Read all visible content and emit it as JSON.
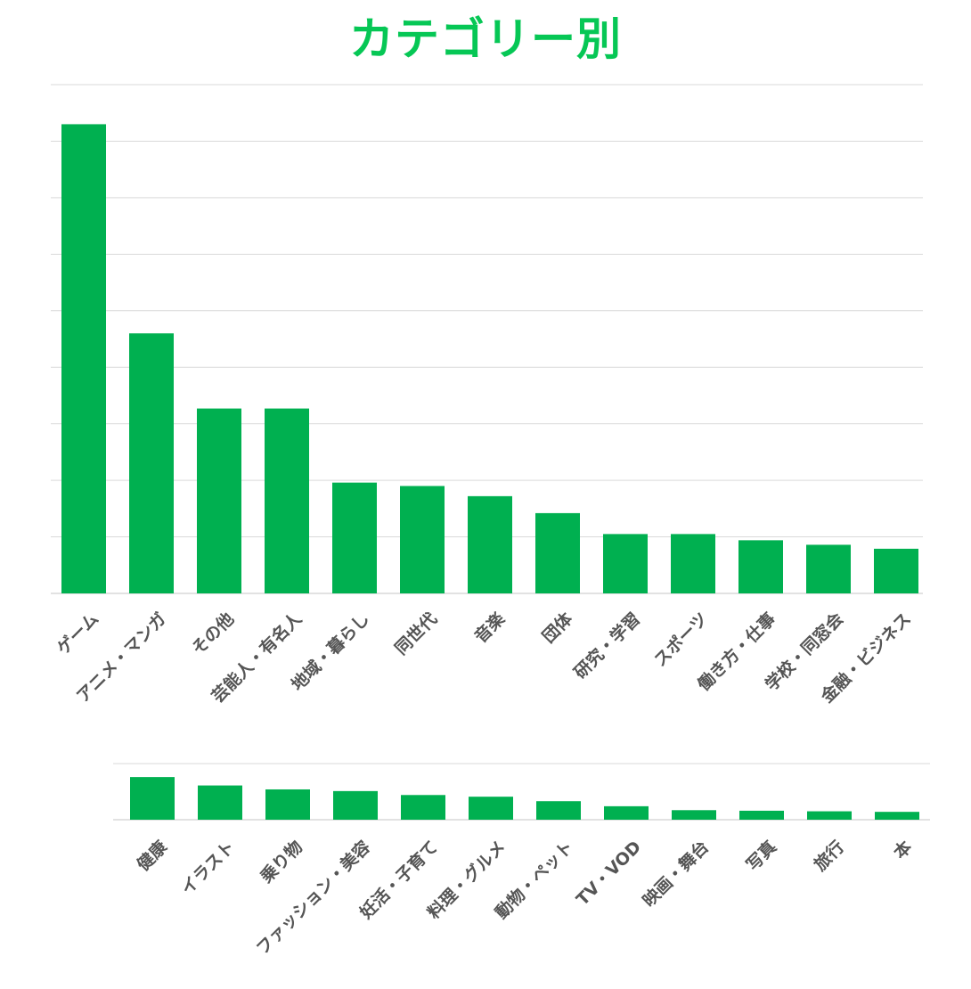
{
  "title": "カテゴリー別",
  "colors": {
    "title": "#06C755",
    "bar": "#00B050",
    "grid": "#d9d9d9",
    "label": "#555555"
  },
  "chart_data": [
    {
      "type": "bar",
      "title": "カテゴリー別",
      "grid": true,
      "ylim": [
        0,
        9
      ],
      "categories": [
        "ゲーム",
        "アニメ・マンガ",
        "その他",
        "芸能人・有名人",
        "地域・暮らし",
        "同世代",
        "音楽",
        "団体",
        "研究・学習",
        "スポーツ",
        "働き方・仕事",
        "学校・同窓会",
        "金融・ビジネス"
      ],
      "values": [
        8.3,
        4.6,
        3.27,
        3.27,
        1.96,
        1.9,
        1.72,
        1.42,
        1.05,
        1.05,
        0.94,
        0.86,
        0.79
      ]
    },
    {
      "type": "bar",
      "grid": true,
      "ylim": [
        0,
        1
      ],
      "categories": [
        "健康",
        "イラスト",
        "乗り物",
        "ファッション・美容",
        "妊活・子育て",
        "料理・グルメ",
        "動物・ペット",
        "TV・VOD",
        "映画・舞台",
        "写真",
        "旅行",
        "本"
      ],
      "values": [
        0.76,
        0.61,
        0.54,
        0.51,
        0.44,
        0.41,
        0.33,
        0.24,
        0.17,
        0.16,
        0.15,
        0.14
      ]
    }
  ]
}
